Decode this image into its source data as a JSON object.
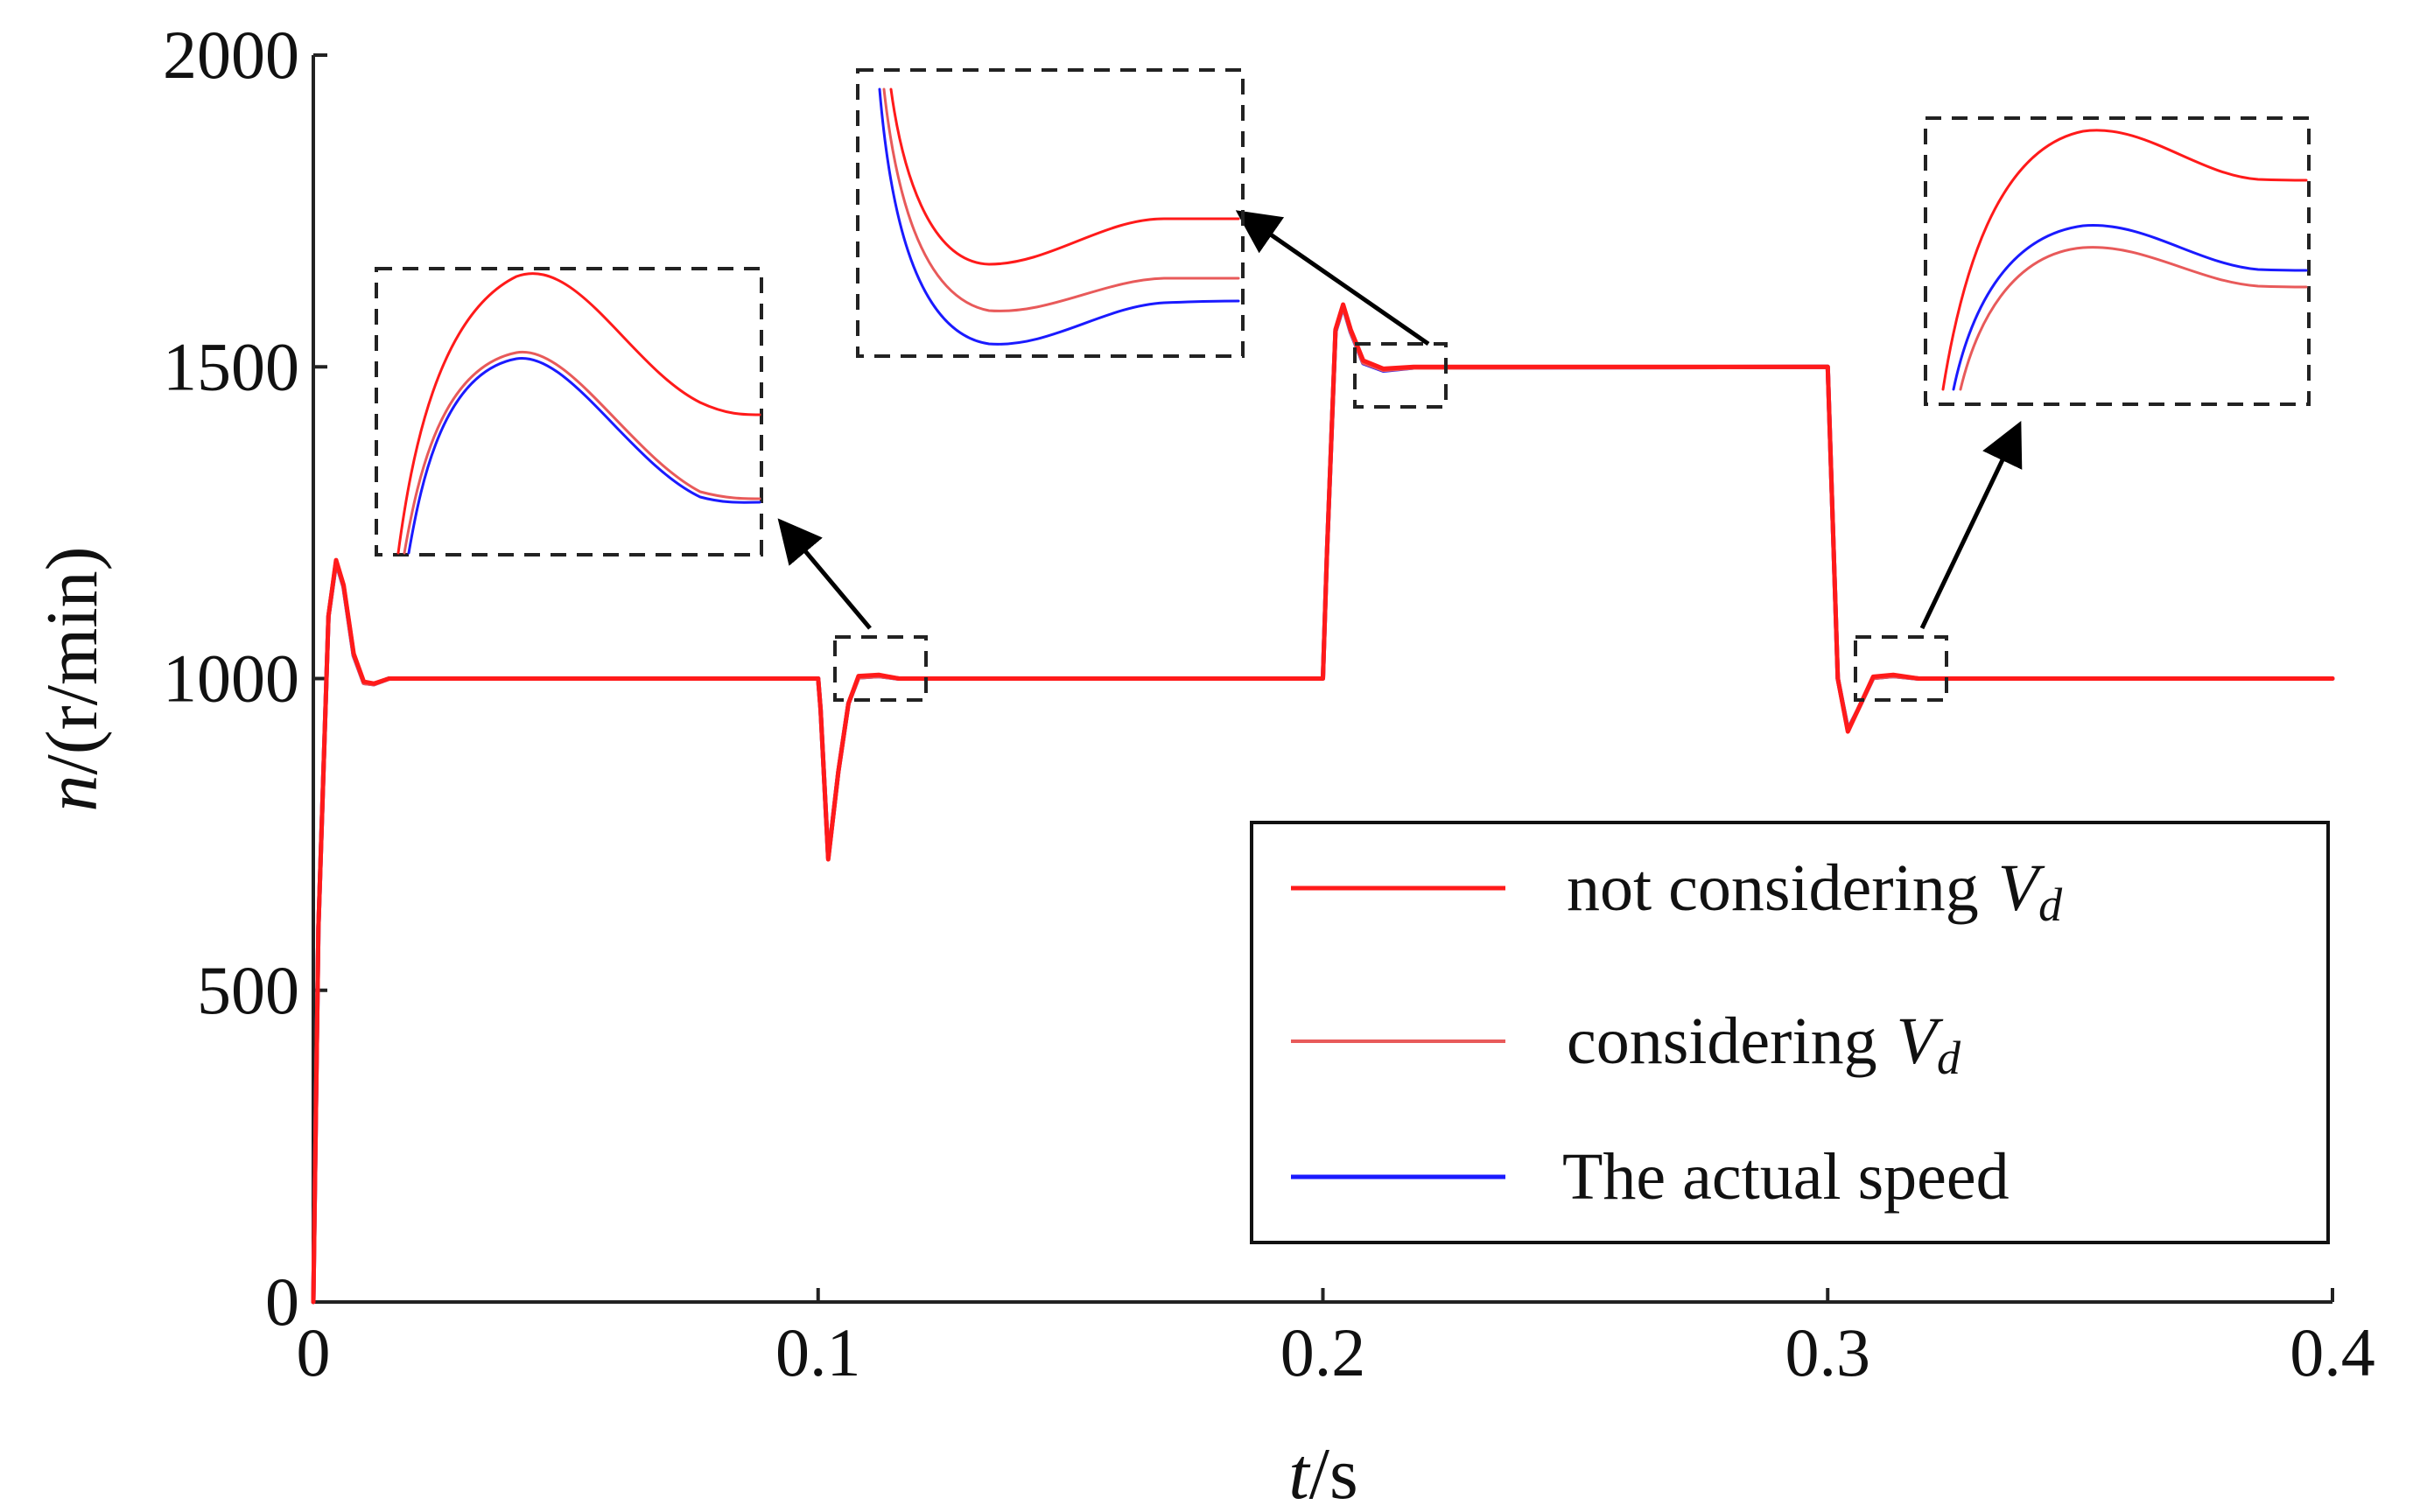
{
  "chart_data": {
    "type": "line",
    "title": "",
    "xlabel": {
      "italic": "t",
      "rest": "/s"
    },
    "ylabel": {
      "italic": "n",
      "rest": "/(r/min)"
    },
    "xlim": [
      0,
      0.4
    ],
    "ylim": [
      0,
      2000
    ],
    "xticks": [
      0,
      0.1,
      0.2,
      0.3,
      0.4
    ],
    "xtick_labels": [
      "0",
      "0.1",
      "0.2",
      "0.3",
      "0.4"
    ],
    "yticks": [
      0,
      500,
      1000,
      1500,
      2000
    ],
    "ytick_labels": [
      "0",
      "500",
      "1000",
      "1500",
      "2000"
    ],
    "grid": false,
    "legend_position": "bottom-right",
    "series": [
      {
        "name": "not considering",
        "subscript_var": "V",
        "subscript": "d",
        "color": "#ff1a1a",
        "points": [
          [
            0,
            0
          ],
          [
            0.001,
            600
          ],
          [
            0.003,
            1100
          ],
          [
            0.0045,
            1190
          ],
          [
            0.006,
            1150
          ],
          [
            0.008,
            1040
          ],
          [
            0.01,
            995
          ],
          [
            0.012,
            992
          ],
          [
            0.015,
            1000
          ],
          [
            0.1,
            1000
          ],
          [
            0.1005,
            950
          ],
          [
            0.102,
            710
          ],
          [
            0.104,
            850
          ],
          [
            0.106,
            960
          ],
          [
            0.108,
            1004
          ],
          [
            0.112,
            1006
          ],
          [
            0.116,
            1000
          ],
          [
            0.2,
            1000
          ],
          [
            0.2008,
            1200
          ],
          [
            0.2025,
            1560
          ],
          [
            0.204,
            1600
          ],
          [
            0.2055,
            1560
          ],
          [
            0.208,
            1510
          ],
          [
            0.212,
            1497
          ],
          [
            0.218,
            1500
          ],
          [
            0.3,
            1500
          ],
          [
            0.3008,
            1300
          ],
          [
            0.302,
            1000
          ],
          [
            0.304,
            915
          ],
          [
            0.306,
            950
          ],
          [
            0.309,
            1003
          ],
          [
            0.313,
            1006
          ],
          [
            0.318,
            1000
          ],
          [
            0.4,
            1000
          ]
        ]
      },
      {
        "name": "considering",
        "subscript_var": "V",
        "subscript": "d",
        "color": "#e85a5a",
        "points": [
          [
            0,
            0
          ],
          [
            0.001,
            600
          ],
          [
            0.003,
            1100
          ],
          [
            0.0045,
            1188
          ],
          [
            0.006,
            1148
          ],
          [
            0.008,
            1038
          ],
          [
            0.01,
            993
          ],
          [
            0.012,
            991
          ],
          [
            0.015,
            1000
          ],
          [
            0.1,
            1000
          ],
          [
            0.1005,
            950
          ],
          [
            0.102,
            712
          ],
          [
            0.104,
            850
          ],
          [
            0.106,
            960
          ],
          [
            0.108,
            1002
          ],
          [
            0.112,
            1004
          ],
          [
            0.116,
            1000
          ],
          [
            0.2,
            1000
          ],
          [
            0.2008,
            1200
          ],
          [
            0.2025,
            1558
          ],
          [
            0.204,
            1598
          ],
          [
            0.2055,
            1557
          ],
          [
            0.208,
            1507
          ],
          [
            0.212,
            1495
          ],
          [
            0.218,
            1499
          ],
          [
            0.3,
            1500
          ],
          [
            0.3008,
            1300
          ],
          [
            0.302,
            1000
          ],
          [
            0.304,
            917
          ],
          [
            0.306,
            950
          ],
          [
            0.309,
            1001
          ],
          [
            0.313,
            1004
          ],
          [
            0.318,
            1000
          ],
          [
            0.4,
            1000
          ]
        ]
      },
      {
        "name": "The actual speed",
        "color": "#1a1aff",
        "points": [
          [
            0,
            0
          ],
          [
            0.001,
            600
          ],
          [
            0.003,
            1100
          ],
          [
            0.0045,
            1187
          ],
          [
            0.006,
            1147
          ],
          [
            0.008,
            1037
          ],
          [
            0.01,
            993
          ],
          [
            0.012,
            991
          ],
          [
            0.015,
            1000
          ],
          [
            0.1,
            1000
          ],
          [
            0.1005,
            950
          ],
          [
            0.102,
            712
          ],
          [
            0.104,
            850
          ],
          [
            0.106,
            960
          ],
          [
            0.108,
            1002
          ],
          [
            0.112,
            1004
          ],
          [
            0.116,
            1000
          ],
          [
            0.2,
            1000
          ],
          [
            0.2008,
            1200
          ],
          [
            0.2025,
            1557
          ],
          [
            0.204,
            1597
          ],
          [
            0.2055,
            1556
          ],
          [
            0.208,
            1506
          ],
          [
            0.212,
            1494
          ],
          [
            0.218,
            1499
          ],
          [
            0.3,
            1500
          ],
          [
            0.3008,
            1300
          ],
          [
            0.302,
            1000
          ],
          [
            0.304,
            918
          ],
          [
            0.306,
            950
          ],
          [
            0.309,
            1001
          ],
          [
            0.313,
            1004
          ],
          [
            0.318,
            1000
          ],
          [
            0.4,
            1000
          ]
        ]
      }
    ],
    "zoom_insets": [
      {
        "name": "zoom-1",
        "region_x": [
          0.104,
          0.122
        ],
        "region_y": [
          965,
          1070
        ]
      },
      {
        "name": "zoom-2",
        "region_x": [
          0.206,
          0.224
        ],
        "region_y": [
          1435,
          1540
        ]
      },
      {
        "name": "zoom-3",
        "region_x": [
          0.305,
          0.323
        ],
        "region_y": [
          965,
          1070
        ]
      }
    ]
  }
}
